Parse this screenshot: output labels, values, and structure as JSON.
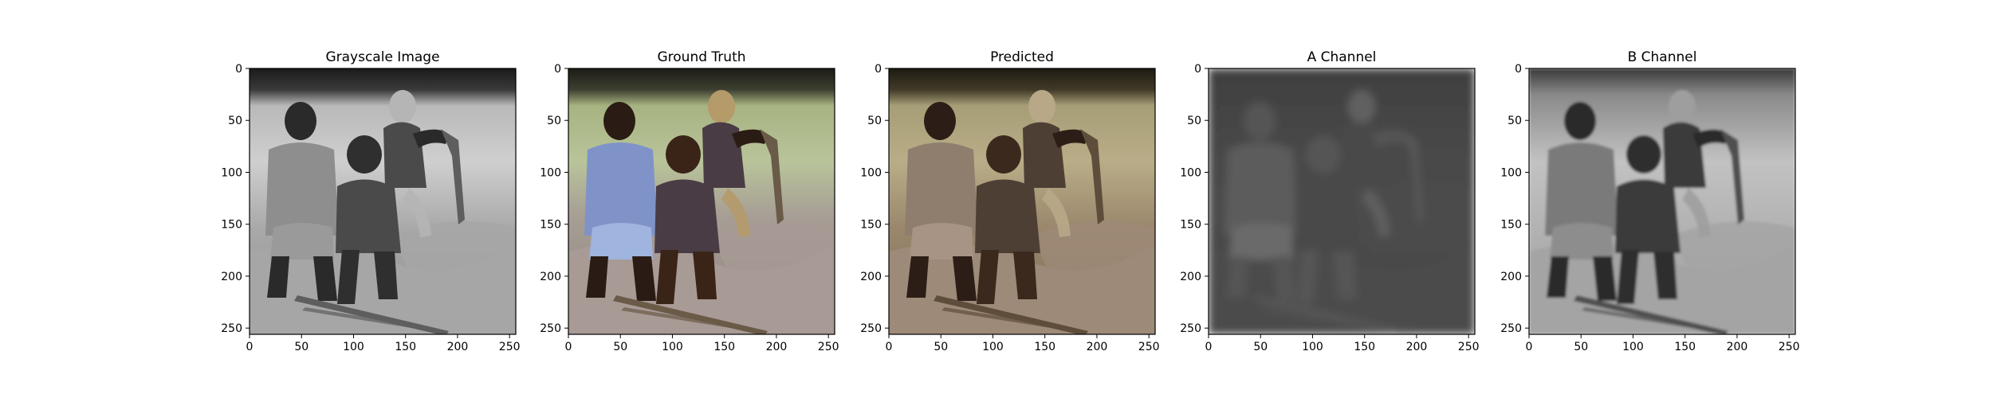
{
  "figure": {
    "panels": [
      {
        "title": "Grayscale Image",
        "kind": "grayscale"
      },
      {
        "title": "Ground Truth",
        "kind": "ground-truth"
      },
      {
        "title": "Predicted",
        "kind": "predicted"
      },
      {
        "title": "A Channel",
        "kind": "a-channel"
      },
      {
        "title": "B Channel",
        "kind": "b-channel"
      }
    ]
  },
  "chart_data": [
    {
      "type": "heatmap",
      "title": "Grayscale Image",
      "x_ticks": [
        0,
        50,
        100,
        150,
        200,
        250
      ],
      "y_ticks": [
        0,
        50,
        100,
        150,
        200,
        250
      ],
      "xlim": [
        0,
        256
      ],
      "ylim": [
        256,
        0
      ],
      "grid": false,
      "colormap": "gray"
    },
    {
      "type": "heatmap",
      "title": "Ground Truth",
      "x_ticks": [
        0,
        50,
        100,
        150,
        200,
        250
      ],
      "y_ticks": [
        0,
        50,
        100,
        150,
        200,
        250
      ],
      "xlim": [
        0,
        256
      ],
      "ylim": [
        256,
        0
      ],
      "grid": false,
      "colormap": "rgb"
    },
    {
      "type": "heatmap",
      "title": "Predicted",
      "x_ticks": [
        0,
        50,
        100,
        150,
        200,
        250
      ],
      "y_ticks": [
        0,
        50,
        100,
        150,
        200,
        250
      ],
      "xlim": [
        0,
        256
      ],
      "ylim": [
        256,
        0
      ],
      "grid": false,
      "colormap": "rgb"
    },
    {
      "type": "heatmap",
      "title": "A Channel",
      "x_ticks": [
        0,
        50,
        100,
        150,
        200,
        250
      ],
      "y_ticks": [
        0,
        50,
        100,
        150,
        200,
        250
      ],
      "xlim": [
        0,
        256
      ],
      "ylim": [
        256,
        0
      ],
      "grid": false,
      "colormap": "gray"
    },
    {
      "type": "heatmap",
      "title": "B Channel",
      "x_ticks": [
        0,
        50,
        100,
        150,
        200,
        250
      ],
      "y_ticks": [
        0,
        50,
        100,
        150,
        200,
        250
      ],
      "xlim": [
        0,
        256
      ],
      "ylim": [
        256,
        0
      ],
      "grid": false,
      "colormap": "gray"
    }
  ]
}
